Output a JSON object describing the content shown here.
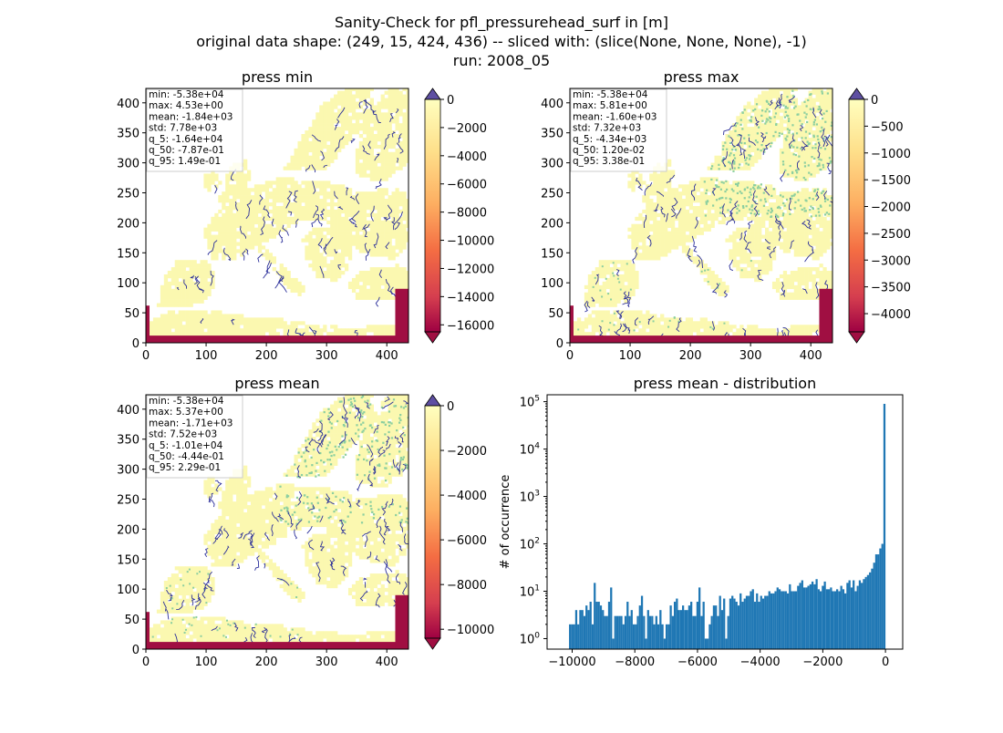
{
  "figure": {
    "suptitle_lines": [
      "Sanity-Check for pfl_pressurehead_surf in [m]",
      "original data shape: (249, 15, 424, 436) -- sliced with: (slice(None, None, None), -1)",
      "run: 2008_05"
    ]
  },
  "colors": {
    "ocean": "#ffffff",
    "land": "#fbf8b0",
    "river": "#2b2f9a",
    "green_speckle": "#8ccfa0",
    "border_strip": "#a00f42",
    "hist_bar": "#1f77b4",
    "colormap_stops": [
      "#9e0142",
      "#d53e4f",
      "#f46d43",
      "#fdae61",
      "#fee08b",
      "#ffffbf"
    ],
    "colorbar_over": "#5e4fa2"
  },
  "chart_data": [
    {
      "type": "heatmap",
      "title": "press min",
      "xticks": [
        0,
        100,
        200,
        300,
        400
      ],
      "yticks": [
        0,
        50,
        100,
        150,
        200,
        250,
        300,
        350,
        400
      ],
      "xlim": [
        0,
        436
      ],
      "ylim": [
        0,
        424
      ],
      "stats": [
        "min: -5.38e+04",
        "max: 4.53e+00",
        "mean: -1.84e+03",
        "std: 7.78e+03",
        "q_5: -1.64e+04",
        "q_50: -7.87e-01",
        "q_95: 1.49e-01"
      ],
      "colorbar": {
        "range": [
          -16500,
          0
        ],
        "ticks": [
          0,
          -2000,
          -4000,
          -6000,
          -8000,
          -10000,
          -12000,
          -14000,
          -16000
        ],
        "extend": "both"
      }
    },
    {
      "type": "heatmap",
      "title": "press max",
      "xticks": [
        0,
        100,
        200,
        300,
        400
      ],
      "yticks": [
        0,
        50,
        100,
        150,
        200,
        250,
        300,
        350,
        400
      ],
      "xlim": [
        0,
        436
      ],
      "ylim": [
        0,
        424
      ],
      "stats": [
        "min: -5.38e+04",
        "max: 5.81e+00",
        "mean: -1.60e+03",
        "std: 7.32e+03",
        "q_5: -4.34e+03",
        "q_50: 1.20e-02",
        "q_95: 3.38e-01"
      ],
      "colorbar": {
        "range": [
          -4340,
          0
        ],
        "ticks": [
          0,
          -500,
          -1000,
          -1500,
          -2000,
          -2500,
          -3000,
          -3500,
          -4000
        ],
        "extend": "both"
      }
    },
    {
      "type": "heatmap",
      "title": "press mean",
      "xticks": [
        0,
        100,
        200,
        300,
        400
      ],
      "yticks": [
        0,
        50,
        100,
        150,
        200,
        250,
        300,
        350,
        400
      ],
      "xlim": [
        0,
        436
      ],
      "ylim": [
        0,
        424
      ],
      "stats": [
        "min: -5.38e+04",
        "max: 5.37e+00",
        "mean: -1.71e+03",
        "std: 7.52e+03",
        "q_5: -1.01e+04",
        "q_50: -4.44e-01",
        "q_95: 2.29e-01"
      ],
      "colorbar": {
        "range": [
          -10400,
          0
        ],
        "ticks": [
          0,
          -2000,
          -4000,
          -6000,
          -8000,
          -10000
        ],
        "extend": "both"
      }
    },
    {
      "type": "bar",
      "title": "press mean - distribution",
      "ylabel": "# of occurrence",
      "yscale": "log",
      "xlim": [
        -10800,
        550
      ],
      "ylim": [
        0.6,
        140000
      ],
      "xticks": [
        -10000,
        -8000,
        -6000,
        -4000,
        -2000,
        0
      ],
      "xtick_labels": [
        "−10000",
        "−8000",
        "−6000",
        "−4000",
        "−2000",
        "0"
      ],
      "yticks": [
        1,
        10,
        100,
        1000,
        10000,
        100000
      ],
      "yticks_exponent": [
        "0",
        "1",
        "2",
        "3",
        "4",
        "5"
      ],
      "bin_range": [
        -10100,
        0
      ],
      "values": [
        2,
        2,
        2,
        4,
        2,
        4,
        4,
        3,
        5,
        4,
        6,
        2,
        15,
        6,
        6,
        5,
        4,
        3,
        3,
        6,
        12,
        1,
        3,
        3,
        3,
        3,
        2,
        3,
        6,
        3,
        4,
        2,
        2,
        3,
        5,
        8,
        3,
        1,
        4,
        3,
        3,
        2,
        3,
        2,
        4,
        2,
        1,
        2,
        2,
        5,
        3,
        6,
        7,
        4,
        4,
        5,
        4,
        4,
        5,
        6,
        3,
        3,
        6,
        12,
        3,
        6,
        1,
        1,
        2,
        3,
        5,
        5,
        3,
        8,
        4,
        7,
        1,
        3,
        7,
        8,
        7,
        6,
        5,
        9,
        6,
        7,
        8,
        8,
        10,
        11,
        6,
        9,
        6,
        8,
        7,
        8,
        8,
        10,
        9,
        9,
        10,
        12,
        11,
        10,
        10,
        10,
        9,
        14,
        10,
        10,
        10,
        13,
        15,
        17,
        12,
        12,
        13,
        14,
        16,
        14,
        18,
        11,
        10,
        13,
        16,
        11,
        11,
        12,
        10,
        10,
        11,
        10,
        13,
        11,
        9,
        15,
        17,
        12,
        17,
        10,
        13,
        17,
        15,
        18,
        20,
        22,
        25,
        30,
        40,
        60,
        60,
        80,
        100,
        90000
      ]
    }
  ]
}
